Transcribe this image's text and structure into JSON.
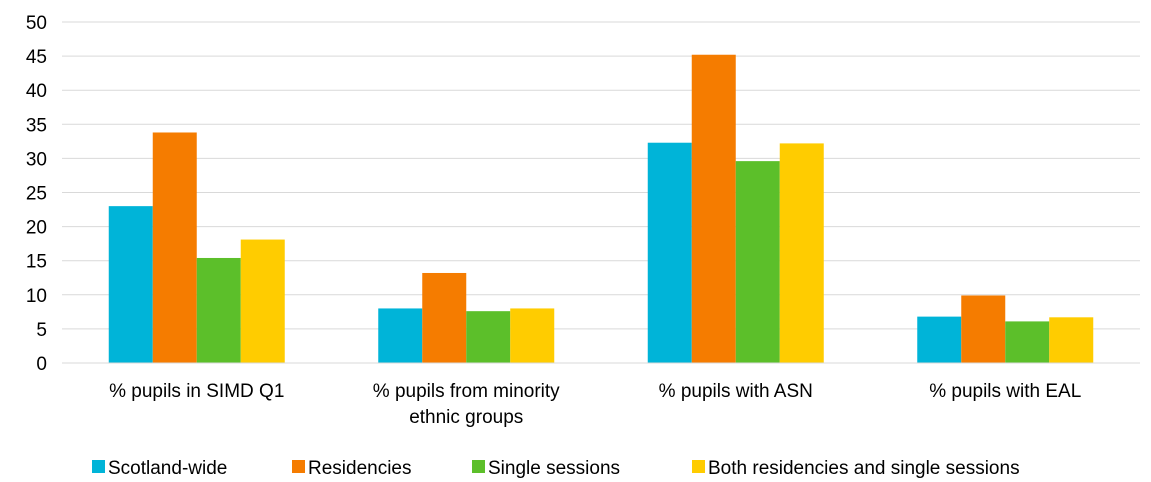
{
  "chart_data": {
    "type": "bar",
    "title": "",
    "xlabel": "",
    "ylabel": "",
    "ylim": [
      0,
      50
    ],
    "yticks": [
      0,
      5,
      10,
      15,
      20,
      25,
      30,
      35,
      40,
      45,
      50
    ],
    "grid": true,
    "legend_position": "bottom",
    "categories": [
      [
        "% pupils in SIMD Q1"
      ],
      [
        "% pupils from minority",
        "ethnic groups"
      ],
      [
        "% pupils with ASN"
      ],
      [
        "% pupils with EAL"
      ]
    ],
    "series": [
      {
        "name": "Scotland-wide",
        "color": "#00B4D8",
        "values": [
          23,
          8,
          32.3,
          6.8
        ]
      },
      {
        "name": "Residencies",
        "color": "#F57C00",
        "values": [
          33.8,
          13.2,
          45.2,
          9.9
        ]
      },
      {
        "name": "Single sessions",
        "color": "#5CBF2A",
        "values": [
          15.4,
          7.6,
          29.6,
          6.1
        ]
      },
      {
        "name": "Both residencies and single sessions",
        "color": "#FFCC00",
        "values": [
          18.1,
          8,
          32.2,
          6.7
        ]
      }
    ]
  }
}
